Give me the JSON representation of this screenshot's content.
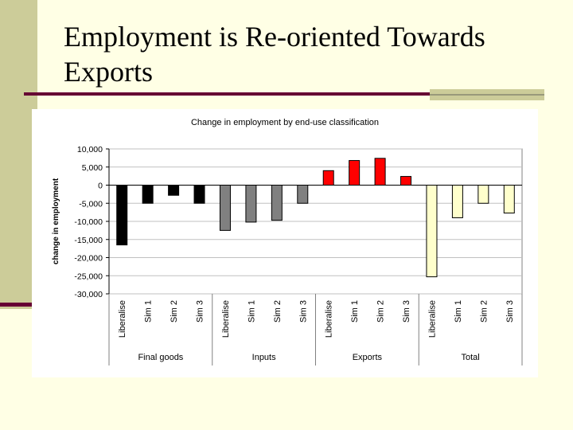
{
  "slide": {
    "title": "Employment is Re-oriented Towards Exports"
  },
  "colors": {
    "background": "#ffffe5",
    "sidebar": "#cccc99",
    "accent": "#660033",
    "final_goods": "#000000",
    "inputs": "#808080",
    "exports": "#ff0000",
    "total": "#ffffcc"
  },
  "chart_data": {
    "type": "bar",
    "title": "Change in employment by end-use classification",
    "xlabel": "",
    "ylabel": "change in employment",
    "ylim": [
      -30000,
      10000
    ],
    "yticks": [
      10000,
      5000,
      0,
      -5000,
      -10000,
      -15000,
      -20000,
      -25000,
      -30000
    ],
    "ytick_labels": [
      "10,000",
      "5,000",
      "0",
      "-5,000",
      "-10,000",
      "-15,000",
      "-20,000",
      "-25,000",
      "-30,000"
    ],
    "grid": true,
    "groups": [
      {
        "name": "Final goods",
        "color_key": "final_goods",
        "categories": [
          "Liberalise",
          "Sim 1",
          "Sim 2",
          "Sim 3"
        ],
        "values": [
          -16500,
          -5000,
          -2800,
          -5000
        ]
      },
      {
        "name": "Inputs",
        "color_key": "inputs",
        "categories": [
          "Liberalise",
          "Sim 1",
          "Sim 2",
          "Sim 3"
        ],
        "values": [
          -12500,
          -10200,
          -9700,
          -5000
        ]
      },
      {
        "name": "Exports",
        "color_key": "exports",
        "categories": [
          "Liberalise",
          "Sim 1",
          "Sim 2",
          "Sim 3"
        ],
        "values": [
          4000,
          6800,
          7400,
          2400
        ]
      },
      {
        "name": "Total",
        "color_key": "total",
        "categories": [
          "Liberalise",
          "Sim 1",
          "Sim 2",
          "Sim 3"
        ],
        "values": [
          -25300,
          -9000,
          -5000,
          -7700
        ]
      }
    ]
  }
}
